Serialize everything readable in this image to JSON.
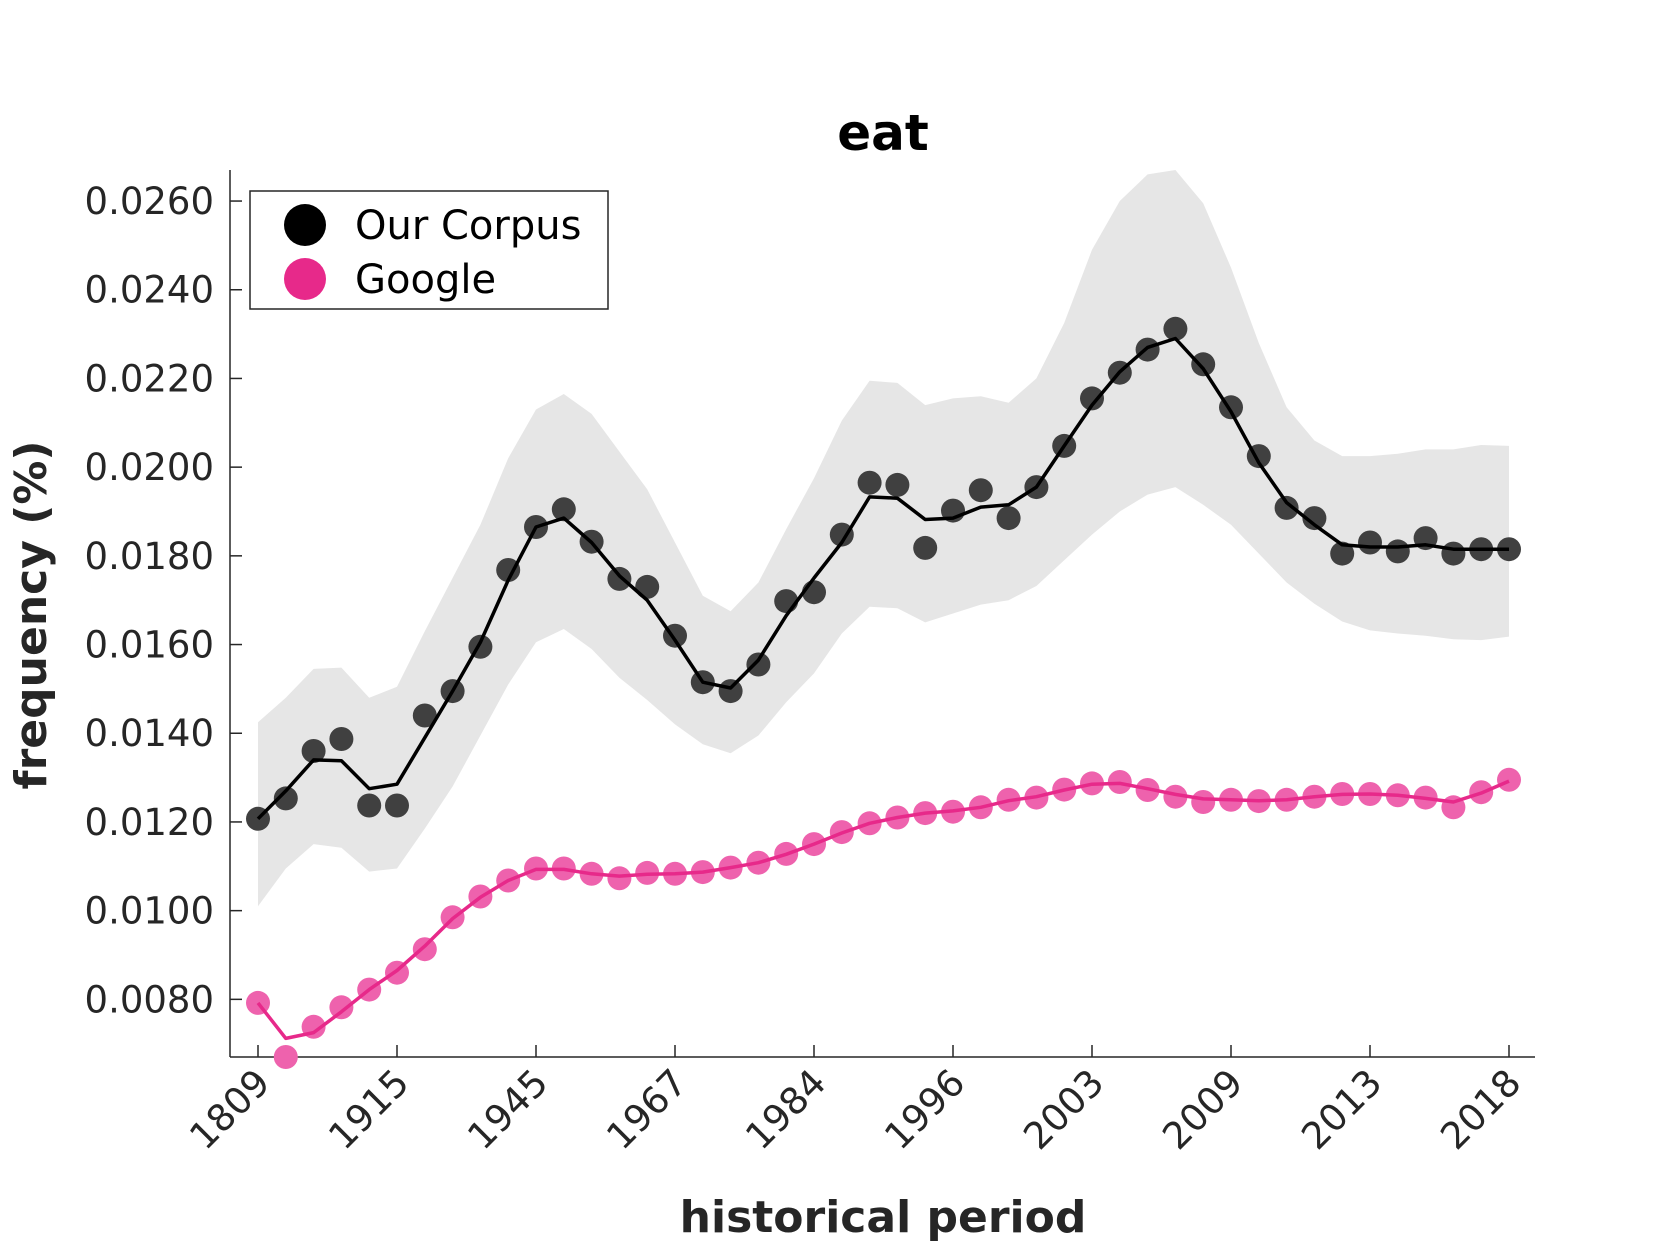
{
  "chart_data": {
    "type": "line",
    "title": "eat",
    "xlabel": "historical period",
    "ylabel": "frequency (%)",
    "ylim": [
      0.0067,
      0.0267
    ],
    "yticks": [
      "0.0080",
      "0.0100",
      "0.0120",
      "0.0140",
      "0.0160",
      "0.0180",
      "0.0200",
      "0.0220",
      "0.0240",
      "0.0260"
    ],
    "ytick_values": [
      0.008,
      0.01,
      0.012,
      0.014,
      0.016,
      0.018,
      0.02,
      0.022,
      0.024,
      0.026
    ],
    "xticks": [
      "1809",
      "1915",
      "1945",
      "1967",
      "1984",
      "1996",
      "2003",
      "2009",
      "2013",
      "2018"
    ],
    "xtick_indices": [
      0,
      5,
      10,
      15,
      20,
      25,
      30,
      35,
      40,
      45
    ],
    "legend": {
      "placement": "top-left"
    },
    "series": [
      {
        "name": "Our Corpus",
        "color": "#000000",
        "marker_color": "#404040",
        "band_color": "#e6e6e6",
        "points": [
          0.01207,
          0.01253,
          0.0136,
          0.01387,
          0.01237,
          0.01237,
          0.0144,
          0.01495,
          0.01595,
          0.01768,
          0.01865,
          0.01905,
          0.01832,
          0.01748,
          0.0173,
          0.0162,
          0.01515,
          0.01495,
          0.01555,
          0.01698,
          0.01718,
          0.01848,
          0.01965,
          0.0196,
          0.01818,
          0.01902,
          0.01948,
          0.01885,
          0.01955,
          0.02048,
          0.02155,
          0.02213,
          0.02265,
          0.02312,
          0.02232,
          0.02135,
          0.02025,
          0.01908,
          0.01885,
          0.01805,
          0.0183,
          0.0181,
          0.0184,
          0.01805,
          0.01815,
          0.01815
        ],
        "smoothed": [
          0.01207,
          0.0127,
          0.0134,
          0.01338,
          0.01275,
          0.01285,
          0.0139,
          0.01495,
          0.01605,
          0.01745,
          0.01865,
          0.01885,
          0.0183,
          0.01755,
          0.017,
          0.0161,
          0.01515,
          0.01502,
          0.01565,
          0.01665,
          0.0175,
          0.0183,
          0.01933,
          0.0193,
          0.01882,
          0.01885,
          0.0191,
          0.01915,
          0.01955,
          0.02048,
          0.0214,
          0.02215,
          0.0227,
          0.0229,
          0.02222,
          0.02125,
          0.0201,
          0.0192,
          0.0187,
          0.01825,
          0.0182,
          0.0182,
          0.01825,
          0.01815,
          0.01815,
          0.01815
        ],
        "band_upper": [
          0.01425,
          0.0148,
          0.01545,
          0.01548,
          0.0148,
          0.01505,
          0.0163,
          0.0175,
          0.0187,
          0.0202,
          0.0213,
          0.02165,
          0.0212,
          0.02035,
          0.0195,
          0.0183,
          0.0171,
          0.01675,
          0.0174,
          0.0186,
          0.01975,
          0.02105,
          0.02195,
          0.0219,
          0.0214,
          0.02155,
          0.0216,
          0.02145,
          0.022,
          0.02325,
          0.0249,
          0.026,
          0.0266,
          0.0267,
          0.02595,
          0.0245,
          0.0228,
          0.02135,
          0.0206,
          0.02025,
          0.02025,
          0.0203,
          0.0204,
          0.0204,
          0.0205,
          0.02048
        ],
        "band_lower": [
          0.0101,
          0.01095,
          0.0115,
          0.01142,
          0.01088,
          0.01095,
          0.01185,
          0.0128,
          0.01395,
          0.0151,
          0.01605,
          0.01635,
          0.0159,
          0.01525,
          0.01475,
          0.0142,
          0.01375,
          0.01355,
          0.01395,
          0.0147,
          0.01535,
          0.01625,
          0.01685,
          0.01682,
          0.0165,
          0.0167,
          0.0169,
          0.017,
          0.01732,
          0.0179,
          0.01848,
          0.019,
          0.01938,
          0.01955,
          0.01915,
          0.0187,
          0.01805,
          0.0174,
          0.01692,
          0.01652,
          0.01632,
          0.01625,
          0.0162,
          0.01612,
          0.0161,
          0.01618
        ]
      },
      {
        "name": "Google",
        "color": "#e7298a",
        "marker_color": "#ee62ad",
        "points": [
          0.00792,
          0.0067,
          0.00738,
          0.00782,
          0.00822,
          0.0086,
          0.00913,
          0.00985,
          0.01032,
          0.01068,
          0.01095,
          0.01095,
          0.01083,
          0.01073,
          0.01085,
          0.01083,
          0.01087,
          0.01097,
          0.01108,
          0.01128,
          0.0115,
          0.01177,
          0.01197,
          0.0121,
          0.0122,
          0.01223,
          0.01233,
          0.0125,
          0.01255,
          0.01273,
          0.01287,
          0.0129,
          0.01272,
          0.01257,
          0.01245,
          0.0125,
          0.01247,
          0.0125,
          0.01257,
          0.01263,
          0.01263,
          0.0126,
          0.01255,
          0.01233,
          0.01267,
          0.01295
        ],
        "smoothed": [
          0.00792,
          0.00712,
          0.00725,
          0.00772,
          0.00822,
          0.00865,
          0.0092,
          0.00982,
          0.0103,
          0.01068,
          0.01093,
          0.01093,
          0.01083,
          0.01078,
          0.01082,
          0.01083,
          0.01087,
          0.01097,
          0.01108,
          0.01127,
          0.0115,
          0.01175,
          0.01197,
          0.0121,
          0.0122,
          0.01225,
          0.01233,
          0.01248,
          0.01257,
          0.01272,
          0.01285,
          0.01287,
          0.01275,
          0.01262,
          0.01252,
          0.0125,
          0.01248,
          0.0125,
          0.01257,
          0.01262,
          0.01263,
          0.0126,
          0.01253,
          0.01245,
          0.01265,
          0.01292
        ]
      }
    ]
  }
}
